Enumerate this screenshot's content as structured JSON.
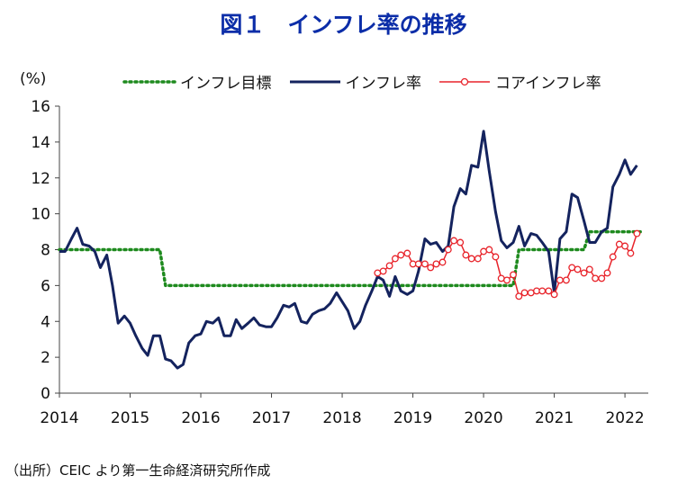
{
  "title": "図１　インフレ率の推移",
  "source": "（出所）CEIC より第一生命経済研究所作成",
  "chart_data": {
    "type": "line",
    "ylabel": "(%)",
    "ylim": [
      0,
      16
    ],
    "yticks": [
      0,
      2,
      4,
      6,
      8,
      10,
      12,
      14,
      16
    ],
    "xlim": [
      2014,
      2022.33
    ],
    "xticks": [
      "2014",
      "2015",
      "2016",
      "2017",
      "2018",
      "2019",
      "2020",
      "2021",
      "2022"
    ],
    "legend_position": "top",
    "series": [
      {
        "name": "インフレ目標",
        "style": "dotted",
        "color": "#1e8a1e",
        "points": [
          [
            2014.0,
            8
          ],
          [
            2015.42,
            8
          ],
          [
            2015.5,
            6
          ],
          [
            2020.42,
            6
          ],
          [
            2020.5,
            8
          ],
          [
            2021.42,
            8
          ],
          [
            2021.5,
            9
          ],
          [
            2022.25,
            9
          ]
        ]
      },
      {
        "name": "インフレ率",
        "style": "solid",
        "color": "#14235e",
        "points": [
          [
            2014.0,
            7.9
          ],
          [
            2014.08,
            7.9
          ],
          [
            2014.17,
            8.6
          ],
          [
            2014.25,
            9.2
          ],
          [
            2014.33,
            8.3
          ],
          [
            2014.42,
            8.2
          ],
          [
            2014.5,
            7.9
          ],
          [
            2014.58,
            7.0
          ],
          [
            2014.67,
            7.7
          ],
          [
            2014.75,
            6.0
          ],
          [
            2014.83,
            3.9
          ],
          [
            2014.92,
            4.3
          ],
          [
            2015.0,
            3.9
          ],
          [
            2015.08,
            3.2
          ],
          [
            2015.17,
            2.5
          ],
          [
            2015.25,
            2.1
          ],
          [
            2015.33,
            3.2
          ],
          [
            2015.42,
            3.2
          ],
          [
            2015.5,
            1.9
          ],
          [
            2015.58,
            1.8
          ],
          [
            2015.67,
            1.4
          ],
          [
            2015.75,
            1.6
          ],
          [
            2015.83,
            2.8
          ],
          [
            2015.92,
            3.2
          ],
          [
            2016.0,
            3.3
          ],
          [
            2016.08,
            4.0
          ],
          [
            2016.17,
            3.9
          ],
          [
            2016.25,
            4.2
          ],
          [
            2016.33,
            3.2
          ],
          [
            2016.42,
            3.2
          ],
          [
            2016.5,
            4.1
          ],
          [
            2016.58,
            3.6
          ],
          [
            2016.67,
            3.9
          ],
          [
            2016.75,
            4.2
          ],
          [
            2016.83,
            3.8
          ],
          [
            2016.92,
            3.7
          ],
          [
            2017.0,
            3.7
          ],
          [
            2017.08,
            4.2
          ],
          [
            2017.17,
            4.9
          ],
          [
            2017.25,
            4.8
          ],
          [
            2017.33,
            5.0
          ],
          [
            2017.42,
            4.0
          ],
          [
            2017.5,
            3.9
          ],
          [
            2017.58,
            4.4
          ],
          [
            2017.67,
            4.6
          ],
          [
            2017.75,
            4.7
          ],
          [
            2017.83,
            5.0
          ],
          [
            2017.92,
            5.6
          ],
          [
            2018.0,
            5.1
          ],
          [
            2018.08,
            4.6
          ],
          [
            2018.17,
            3.6
          ],
          [
            2018.25,
            4.0
          ],
          [
            2018.33,
            4.9
          ],
          [
            2018.42,
            5.7
          ],
          [
            2018.5,
            6.5
          ],
          [
            2018.58,
            6.3
          ],
          [
            2018.67,
            5.4
          ],
          [
            2018.75,
            6.5
          ],
          [
            2018.83,
            5.7
          ],
          [
            2018.92,
            5.5
          ],
          [
            2019.0,
            5.7
          ],
          [
            2019.08,
            6.8
          ],
          [
            2019.17,
            8.6
          ],
          [
            2019.25,
            8.3
          ],
          [
            2019.33,
            8.4
          ],
          [
            2019.42,
            7.9
          ],
          [
            2019.5,
            8.2
          ],
          [
            2019.58,
            10.4
          ],
          [
            2019.67,
            11.4
          ],
          [
            2019.75,
            11.1
          ],
          [
            2019.83,
            12.7
          ],
          [
            2019.92,
            12.6
          ],
          [
            2020.0,
            14.6
          ],
          [
            2020.08,
            12.4
          ],
          [
            2020.17,
            10.1
          ],
          [
            2020.25,
            8.5
          ],
          [
            2020.33,
            8.1
          ],
          [
            2020.42,
            8.4
          ],
          [
            2020.5,
            9.3
          ],
          [
            2020.58,
            8.2
          ],
          [
            2020.67,
            8.9
          ],
          [
            2020.75,
            8.8
          ],
          [
            2020.83,
            8.4
          ],
          [
            2020.92,
            7.9
          ],
          [
            2021.0,
            5.6
          ],
          [
            2021.08,
            8.6
          ],
          [
            2021.17,
            9.0
          ],
          [
            2021.25,
            11.1
          ],
          [
            2021.33,
            10.9
          ],
          [
            2021.42,
            9.6
          ],
          [
            2021.5,
            8.4
          ],
          [
            2021.58,
            8.4
          ],
          [
            2021.67,
            9.0
          ],
          [
            2021.75,
            9.2
          ],
          [
            2021.83,
            11.5
          ],
          [
            2021.92,
            12.2
          ],
          [
            2022.0,
            13.0
          ],
          [
            2022.08,
            12.2
          ],
          [
            2022.17,
            12.7
          ]
        ]
      },
      {
        "name": "コアインフレ率",
        "style": "solid-circle",
        "color": "#e8242b",
        "points": [
          [
            2018.5,
            6.7
          ],
          [
            2018.58,
            6.8
          ],
          [
            2018.67,
            7.1
          ],
          [
            2018.75,
            7.5
          ],
          [
            2018.83,
            7.7
          ],
          [
            2018.92,
            7.8
          ],
          [
            2019.0,
            7.2
          ],
          [
            2019.08,
            7.2
          ],
          [
            2019.17,
            7.2
          ],
          [
            2019.25,
            7.0
          ],
          [
            2019.33,
            7.2
          ],
          [
            2019.42,
            7.3
          ],
          [
            2019.5,
            8.0
          ],
          [
            2019.58,
            8.5
          ],
          [
            2019.67,
            8.4
          ],
          [
            2019.75,
            7.7
          ],
          [
            2019.83,
            7.5
          ],
          [
            2019.92,
            7.5
          ],
          [
            2020.0,
            7.9
          ],
          [
            2020.08,
            8.0
          ],
          [
            2020.17,
            7.6
          ],
          [
            2020.25,
            6.4
          ],
          [
            2020.33,
            6.3
          ],
          [
            2020.42,
            6.6
          ],
          [
            2020.5,
            5.4
          ],
          [
            2020.58,
            5.6
          ],
          [
            2020.67,
            5.6
          ],
          [
            2020.75,
            5.7
          ],
          [
            2020.83,
            5.7
          ],
          [
            2020.92,
            5.7
          ],
          [
            2021.0,
            5.5
          ],
          [
            2021.08,
            6.3
          ],
          [
            2021.17,
            6.3
          ],
          [
            2021.25,
            7.0
          ],
          [
            2021.33,
            6.9
          ],
          [
            2021.42,
            6.7
          ],
          [
            2021.5,
            6.9
          ],
          [
            2021.58,
            6.4
          ],
          [
            2021.67,
            6.4
          ],
          [
            2021.75,
            6.7
          ],
          [
            2021.83,
            7.6
          ],
          [
            2021.92,
            8.3
          ],
          [
            2022.0,
            8.2
          ],
          [
            2022.08,
            7.8
          ],
          [
            2022.17,
            8.9
          ]
        ]
      }
    ]
  }
}
